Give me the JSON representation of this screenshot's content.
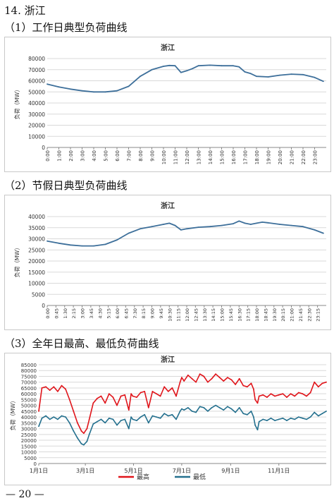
{
  "section_title": "14. 浙江",
  "page_number": "— 20 —",
  "charts": [
    {
      "caption": "（1）工作日典型负荷曲线"
    },
    {
      "caption": "（2）节假日典型负荷曲线"
    },
    {
      "caption": "（3）全年日最高、最低负荷曲线"
    }
  ],
  "chart_data": [
    {
      "type": "line",
      "title": "浙江",
      "ylabel": "负荷（MW）",
      "ylim": [
        0,
        80000
      ],
      "yticks": [
        "0",
        "10000",
        "20000",
        "30000",
        "40000",
        "50000",
        "60000",
        "70000",
        "80000"
      ],
      "tick_labels": [
        "0:00",
        "1:00",
        "2:00",
        "3:00",
        "4:00",
        "5:00",
        "6:00",
        "7:00",
        "8:00",
        "9:00",
        "10:00",
        "11:00",
        "12:00",
        "13:00",
        "14:00",
        "15:00",
        "16:00",
        "17:00",
        "18:00",
        "19:00",
        "20:00",
        "21:00",
        "22:00",
        "23:00"
      ],
      "color": "#3d6f9a",
      "x": [
        0,
        1,
        2,
        3,
        4,
        5,
        6,
        7,
        8,
        9,
        10,
        10.5,
        11,
        11.5,
        12,
        12.5,
        13,
        14,
        15,
        16,
        16.5,
        17,
        17.5,
        18,
        19,
        20,
        21,
        22,
        23,
        23.75
      ],
      "values": [
        57000,
        54500,
        52500,
        51000,
        50000,
        50000,
        51000,
        55000,
        64000,
        70000,
        73000,
        73800,
        73500,
        67500,
        69000,
        71000,
        73500,
        74000,
        73500,
        73500,
        72500,
        68000,
        66500,
        64000,
        63500,
        65000,
        66000,
        65500,
        63000,
        59500
      ]
    },
    {
      "type": "line",
      "title": "浙江",
      "ylabel": "负荷（MW）",
      "ylim": [
        0,
        40000
      ],
      "yticks": [
        "0",
        "5000",
        "10000",
        "15000",
        "20000",
        "25000",
        "30000",
        "35000",
        "40000"
      ],
      "tick_labels": [
        "0:00",
        "0:45",
        "1:30",
        "2:15",
        "3:00",
        "3:45",
        "4:30",
        "5:15",
        "6:00",
        "6:45",
        "7:30",
        "8:15",
        "9:00",
        "9:45",
        "10:30",
        "11:15",
        "12:00",
        "12:45",
        "13:30",
        "14:15",
        "15:00",
        "15:45",
        "16:30",
        "17:15",
        "18:00",
        "18:45",
        "19:30",
        "20:15",
        "21:00",
        "21:45",
        "22:30",
        "23:15"
      ],
      "color": "#3d6f9a",
      "x": [
        0,
        1,
        2,
        3,
        4,
        5,
        6,
        7,
        8,
        9,
        10,
        10.5,
        11,
        11.5,
        12,
        13,
        14,
        15,
        16,
        16.5,
        17,
        17.5,
        18,
        18.5,
        19,
        20,
        21,
        22,
        23,
        23.75
      ],
      "values": [
        29000,
        28000,
        27200,
        26800,
        26800,
        27500,
        29500,
        32500,
        34500,
        35500,
        36500,
        37000,
        36000,
        34000,
        34500,
        35200,
        35500,
        36000,
        36800,
        38000,
        37000,
        36500,
        37000,
        37500,
        37200,
        36500,
        36000,
        35500,
        34000,
        32500
      ]
    },
    {
      "type": "line",
      "title": "浙江",
      "ylabel": "负荷（MW）",
      "ylim": [
        0,
        85000
      ],
      "yticks": [
        "0",
        "5000",
        "10000",
        "15000",
        "20000",
        "25000",
        "30000",
        "35000",
        "40000",
        "45000",
        "50000",
        "55000",
        "60000",
        "65000",
        "70000",
        "75000",
        "80000",
        "85000"
      ],
      "tick_labels": [
        "1月1日",
        "3月1日",
        "5月1日",
        "7月1日",
        "9月1日",
        "11月1日"
      ],
      "legend": "bottom",
      "series": [
        {
          "name": "最高",
          "color": "#e0141a",
          "x": [
            1,
            5,
            10,
            15,
            20,
            25,
            30,
            35,
            40,
            45,
            50,
            55,
            58,
            62,
            65,
            70,
            75,
            80,
            85,
            90,
            95,
            100,
            105,
            110,
            115,
            118,
            120,
            125,
            130,
            135,
            140,
            145,
            150,
            155,
            160,
            165,
            170,
            175,
            180,
            182,
            185,
            190,
            195,
            200,
            205,
            210,
            215,
            220,
            225,
            230,
            235,
            240,
            245,
            250,
            255,
            260,
            265,
            270,
            273,
            275,
            278,
            280,
            285,
            290,
            295,
            300,
            305,
            310,
            315,
            320,
            325,
            330,
            335,
            340,
            345,
            350,
            355,
            360,
            365
          ],
          "values": [
            45000,
            65000,
            66000,
            63000,
            66000,
            62000,
            67000,
            64000,
            55000,
            45000,
            35000,
            28000,
            26000,
            30000,
            38000,
            52000,
            56000,
            58000,
            52000,
            60000,
            57000,
            50000,
            58000,
            59000,
            46000,
            60000,
            58000,
            57000,
            61000,
            62000,
            48000,
            62000,
            60000,
            58000,
            66000,
            62000,
            65000,
            58000,
            70000,
            74000,
            71000,
            76000,
            73000,
            70000,
            77000,
            75000,
            70000,
            73000,
            77000,
            74000,
            71000,
            74000,
            72000,
            68000,
            73000,
            67000,
            66000,
            69000,
            64000,
            55000,
            52000,
            58000,
            59000,
            57000,
            60000,
            58000,
            59000,
            60000,
            57000,
            60000,
            58000,
            61000,
            60000,
            58000,
            61000,
            70000,
            66000,
            69000,
            70000
          ]
        },
        {
          "name": "最低",
          "color": "#24708e",
          "x": [
            1,
            5,
            10,
            15,
            20,
            25,
            30,
            35,
            40,
            45,
            50,
            55,
            58,
            62,
            65,
            70,
            75,
            80,
            85,
            90,
            95,
            100,
            105,
            110,
            115,
            118,
            120,
            125,
            130,
            135,
            140,
            145,
            150,
            155,
            160,
            165,
            170,
            175,
            180,
            182,
            185,
            190,
            195,
            200,
            205,
            210,
            215,
            220,
            225,
            230,
            235,
            240,
            245,
            250,
            255,
            260,
            265,
            270,
            273,
            275,
            278,
            280,
            285,
            290,
            295,
            300,
            305,
            310,
            315,
            320,
            325,
            330,
            335,
            340,
            345,
            350,
            355,
            360,
            365
          ],
          "values": [
            32000,
            39000,
            41000,
            38000,
            40000,
            38000,
            41000,
            40000,
            35000,
            28000,
            22000,
            17000,
            16000,
            19000,
            25000,
            34000,
            36000,
            38000,
            35000,
            39000,
            38000,
            33000,
            37000,
            38000,
            30000,
            40000,
            38000,
            37000,
            40000,
            42000,
            35000,
            41000,
            40000,
            39000,
            43000,
            41000,
            42000,
            38000,
            45000,
            47000,
            46000,
            48000,
            45000,
            44000,
            49000,
            48000,
            45000,
            48000,
            50000,
            48000,
            46000,
            49000,
            47000,
            44000,
            48000,
            43000,
            42000,
            45000,
            40000,
            33000,
            29000,
            36000,
            38000,
            37000,
            39000,
            37000,
            38000,
            39000,
            37000,
            39000,
            38000,
            40000,
            39000,
            38000,
            40000,
            44000,
            41000,
            43000,
            45000
          ]
        }
      ]
    }
  ]
}
